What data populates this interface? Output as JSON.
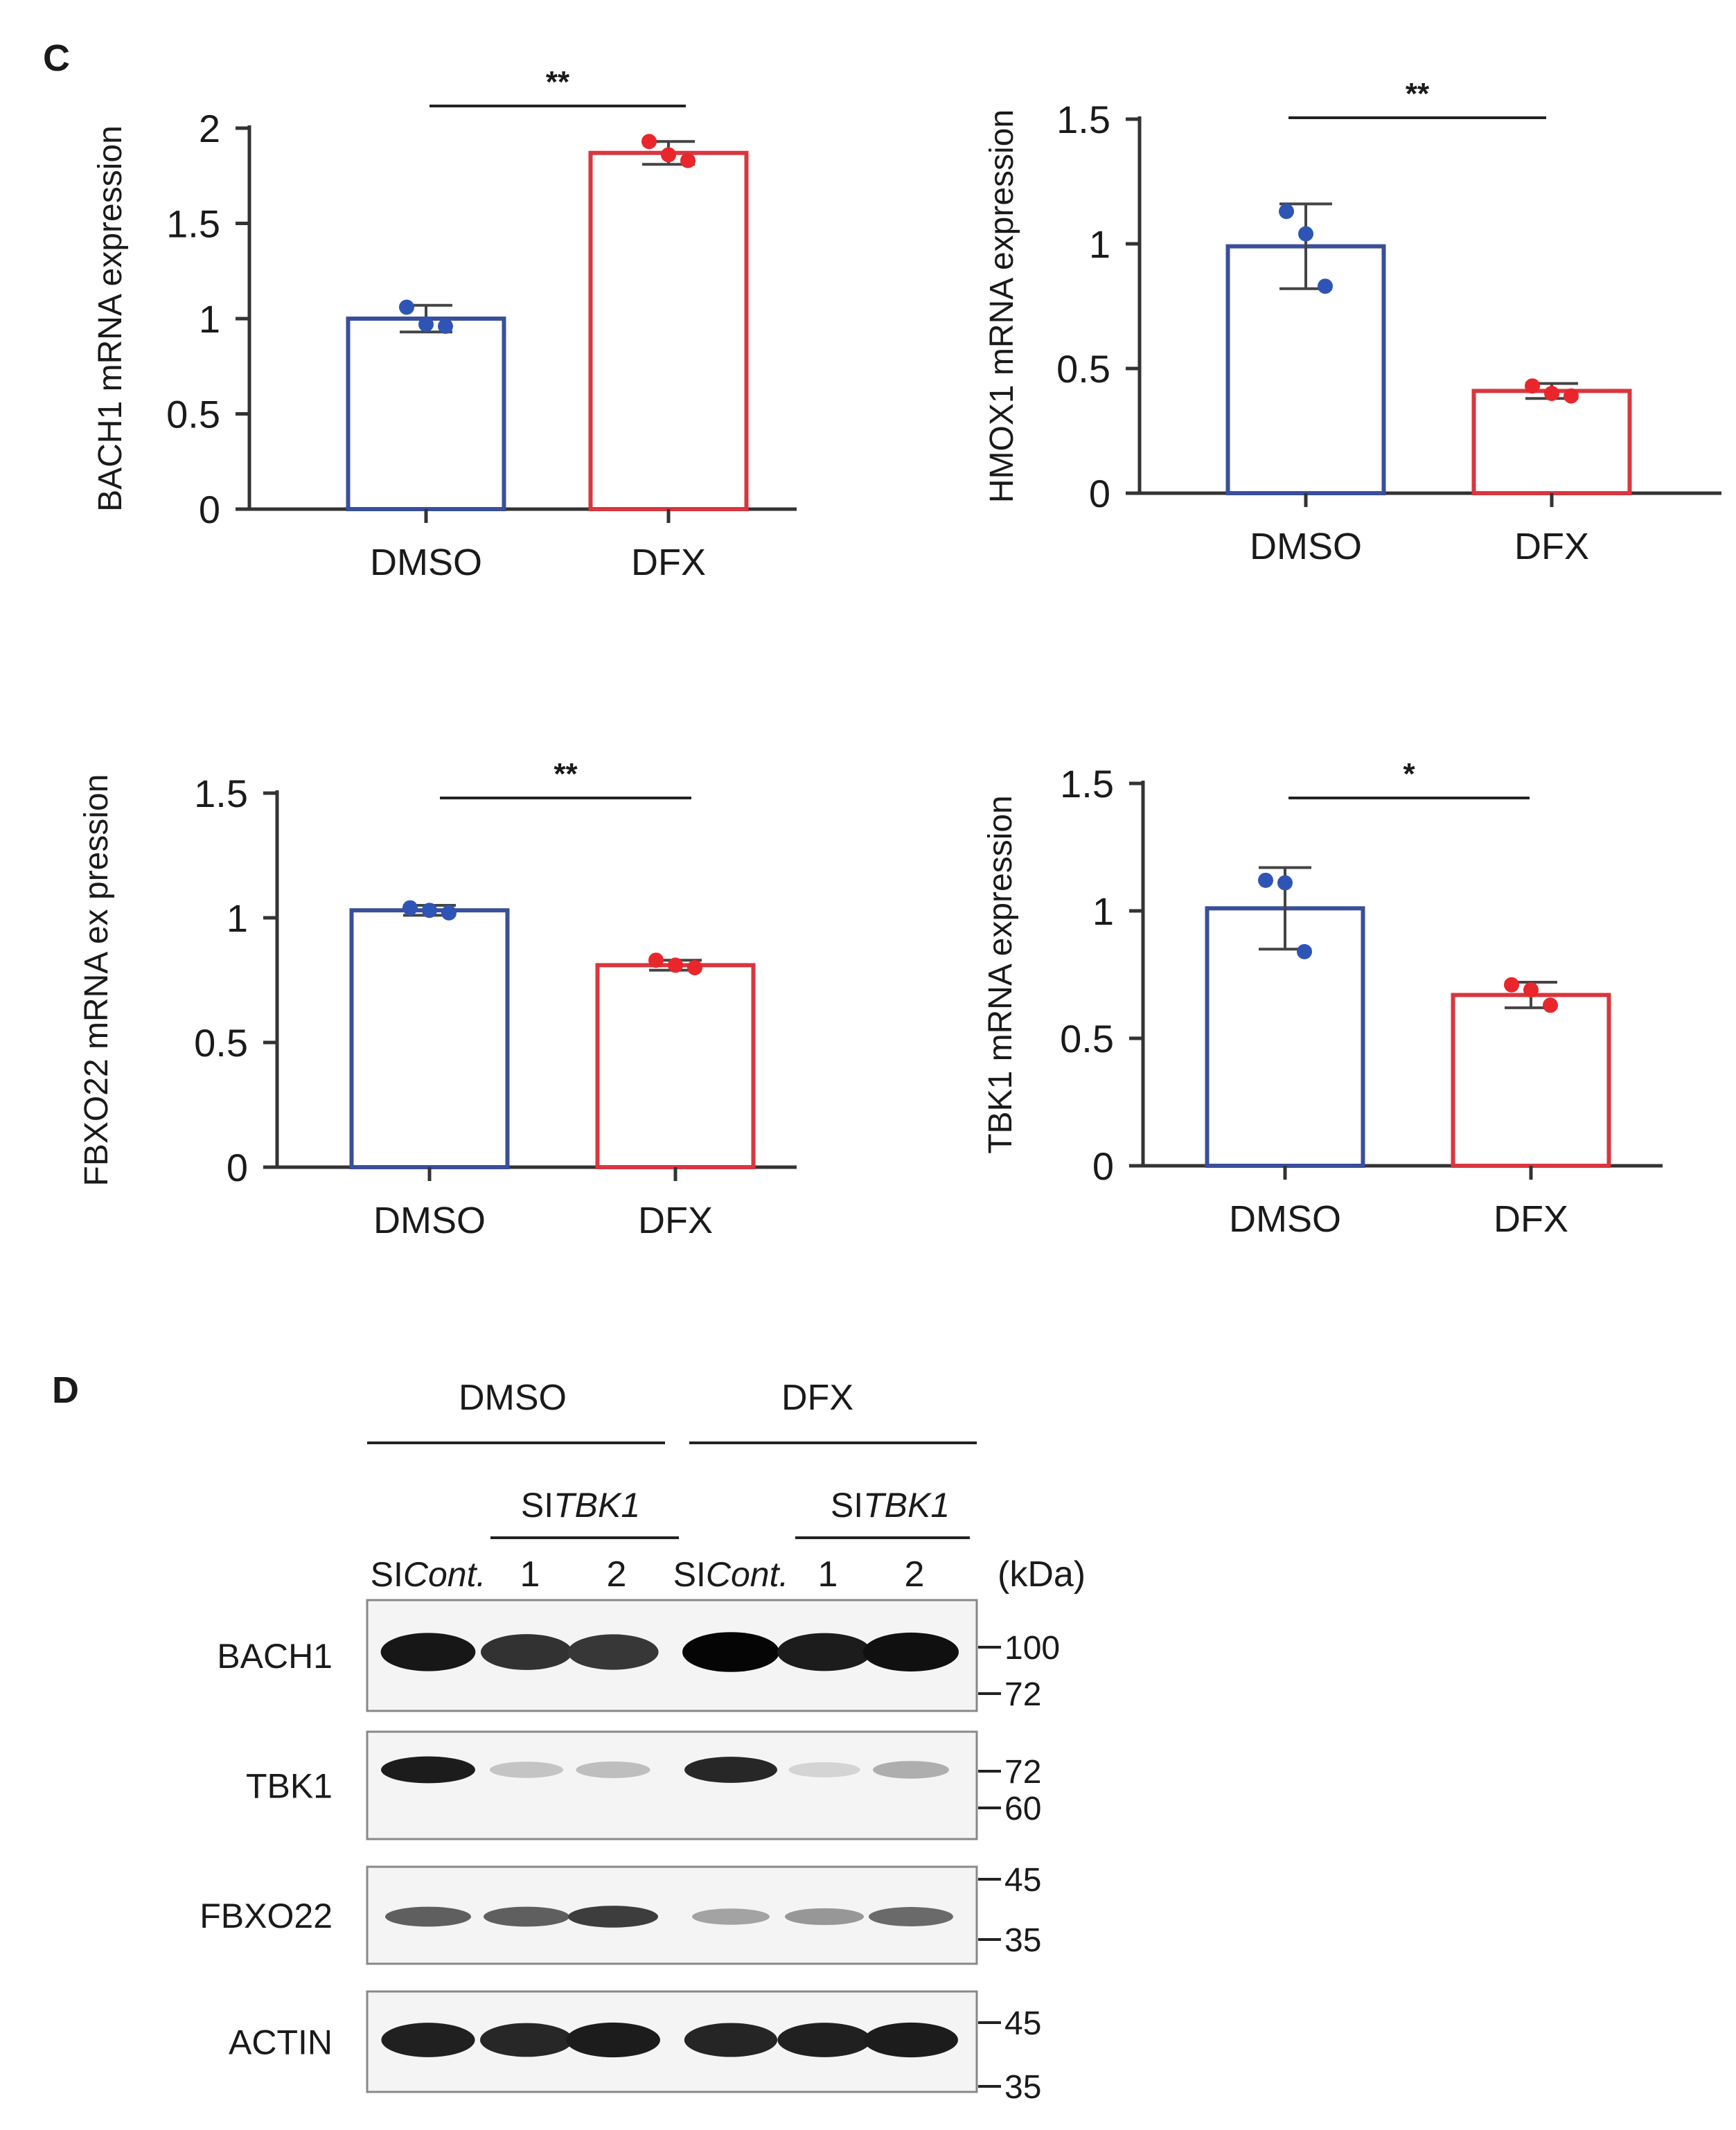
{
  "panels": {
    "c_label": "C",
    "d_label": "D"
  },
  "chart_data": [
    {
      "type": "bar",
      "title": "",
      "xlabel": "",
      "ylabel": "BACH1 mRNA expression",
      "categories": [
        "DMSO",
        "DFX"
      ],
      "values": [
        1.0,
        1.87
      ],
      "errors": [
        0.07,
        0.06
      ],
      "points": [
        [
          1.06,
          0.97,
          0.96
        ],
        [
          1.93,
          1.86,
          1.83
        ]
      ],
      "bar_colors": [
        "#3a4f9a",
        "#d9363e"
      ],
      "point_colors": [
        "#2e55b6",
        "#e8262c"
      ],
      "ylim": [
        0,
        2
      ],
      "yticks": [
        0,
        0.5,
        1,
        1.5,
        2
      ],
      "ytick_labels": [
        "0",
        "0.5",
        "1",
        "1.5",
        "2"
      ],
      "significance": "**"
    },
    {
      "type": "bar",
      "title": "",
      "xlabel": "",
      "ylabel": "HMOX1  mRNA expression",
      "categories": [
        "DMSO",
        "DFX"
      ],
      "values": [
        0.99,
        0.41
      ],
      "errors": [
        0.17,
        0.03
      ],
      "points": [
        [
          1.13,
          1.04,
          0.83
        ],
        [
          0.43,
          0.4,
          0.39
        ]
      ],
      "bar_colors": [
        "#3a4f9a",
        "#d9363e"
      ],
      "point_colors": [
        "#2e55b6",
        "#e8262c"
      ],
      "ylim": [
        0,
        1.5
      ],
      "yticks": [
        0,
        0.5,
        1,
        1.5
      ],
      "ytick_labels": [
        "0",
        "0.5",
        "1",
        "1.5"
      ],
      "significance": "**"
    },
    {
      "type": "bar",
      "title": "",
      "xlabel": "",
      "ylabel": "FBXO22 mRNA ex pression",
      "categories": [
        "DMSO",
        "DFX"
      ],
      "values": [
        1.03,
        0.81
      ],
      "errors": [
        0.02,
        0.02
      ],
      "points": [
        [
          1.04,
          1.03,
          1.02
        ],
        [
          0.83,
          0.81,
          0.8
        ]
      ],
      "bar_colors": [
        "#3a4f9a",
        "#d9363e"
      ],
      "point_colors": [
        "#2e55b6",
        "#e8262c"
      ],
      "ylim": [
        0,
        1.5
      ],
      "yticks": [
        0,
        0.5,
        1,
        1.5
      ],
      "ytick_labels": [
        "0",
        "0.5",
        "1",
        "1.5"
      ],
      "significance": "**"
    },
    {
      "type": "bar",
      "title": "",
      "xlabel": "",
      "ylabel": "TBK1 mRNA expression",
      "categories": [
        "DMSO",
        "DFX"
      ],
      "values": [
        1.01,
        0.67
      ],
      "errors": [
        0.16,
        0.05
      ],
      "points": [
        [
          1.12,
          1.11,
          0.84
        ],
        [
          0.71,
          0.69,
          0.63
        ]
      ],
      "bar_colors": [
        "#3a4f9a",
        "#d9363e"
      ],
      "point_colors": [
        "#2e55b6",
        "#e8262c"
      ],
      "ylim": [
        0,
        1.5
      ],
      "yticks": [
        0,
        0.5,
        1,
        1.5
      ],
      "ytick_labels": [
        "0",
        "0.5",
        "1",
        "1.5"
      ],
      "significance": "*"
    }
  ],
  "blot": {
    "groups": [
      "DMSO",
      "DFX"
    ],
    "si_prefix": "SI",
    "si_target": "TBK1",
    "lane_prefix": "SI",
    "lane_control": "Cont.",
    "lane_numbers": [
      "1",
      "2"
    ],
    "unit": "(kDa)",
    "rows": [
      {
        "protein": "BACH1",
        "markers": [
          "100",
          "72"
        ],
        "intensity": [
          0.92,
          0.8,
          0.78,
          1.0,
          0.9,
          0.95
        ]
      },
      {
        "protein": "TBK1",
        "markers": [
          "72",
          "60"
        ],
        "intensity": [
          0.9,
          0.15,
          0.18,
          0.85,
          0.08,
          0.25
        ]
      },
      {
        "protein": "FBXO22",
        "markers": [
          "45",
          "35"
        ],
        "intensity": [
          0.6,
          0.6,
          0.75,
          0.3,
          0.35,
          0.55
        ]
      },
      {
        "protein": "ACTIN",
        "markers": [
          "45",
          "35"
        ],
        "intensity": [
          0.88,
          0.85,
          0.9,
          0.86,
          0.88,
          0.9
        ]
      }
    ]
  }
}
